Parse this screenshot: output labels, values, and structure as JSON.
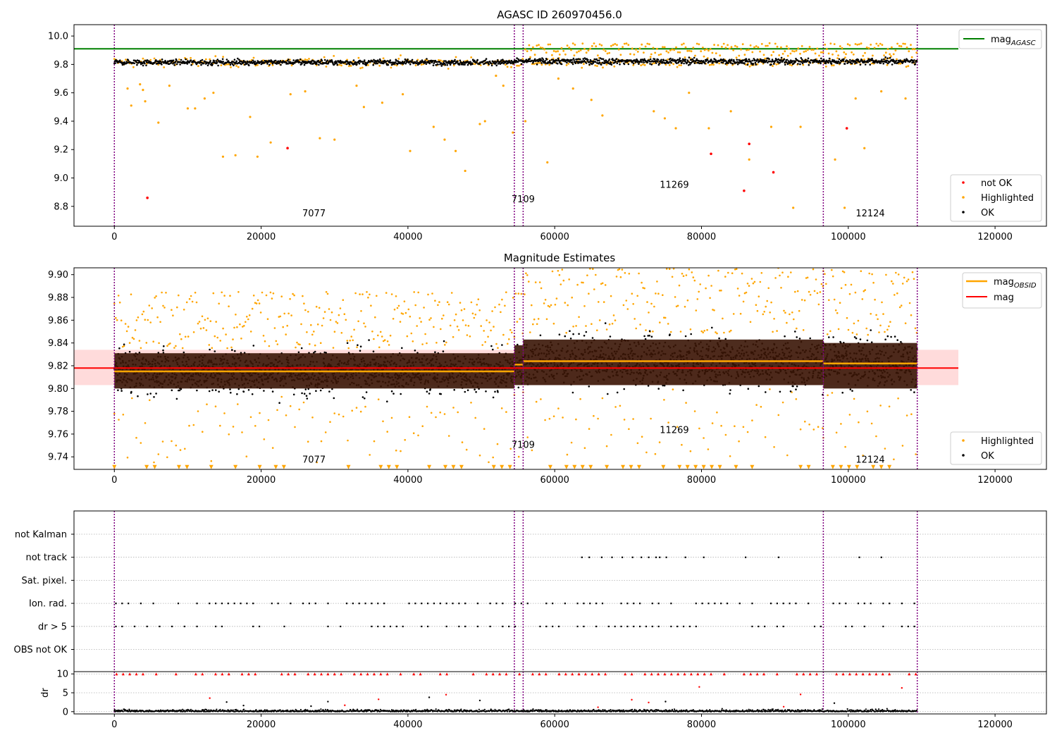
{
  "figure": {
    "background": "#ffffff",
    "colors": {
      "ok": "#000000",
      "highlighted": "#ffa500",
      "not_ok": "#ff0000",
      "mag_agasc_line": "#008000",
      "mag_line": "#ff0000",
      "mag_band": "#ffcccc",
      "obsid_band": "#3a1505",
      "obs_boundary": "#800080",
      "grid": "#b0b0b0"
    }
  },
  "chart_data": [
    {
      "id": "panel1",
      "type": "scatter",
      "title": "AGASC ID 260970456.0",
      "xlim": [
        -5500,
        127000
      ],
      "ylim": [
        8.66,
        10.08
      ],
      "x_ticks": [
        0,
        20000,
        40000,
        60000,
        80000,
        100000,
        120000
      ],
      "y_ticks": [
        8.8,
        9.0,
        9.2,
        9.4,
        9.6,
        9.8,
        10.0
      ],
      "y_tick_labels": [
        "8.8",
        "9.0",
        "9.2",
        "9.4",
        "9.6",
        "9.8",
        "10.0"
      ],
      "obs_boundaries": [
        0,
        54500,
        55700,
        96600,
        109400
      ],
      "obsid_labels": [
        {
          "text": "7077",
          "x": 27200,
          "y": 8.73
        },
        {
          "text": "7109",
          "x": 55700,
          "y": 8.83
        },
        {
          "text": "11269",
          "x": 76300,
          "y": 8.93
        },
        {
          "text": "12124",
          "x": 103000,
          "y": 8.73
        }
      ],
      "hlines": [
        {
          "name": "mag_AGASC",
          "y": 9.91,
          "x_range": [
            -5500,
            115000
          ]
        }
      ],
      "series": {
        "ok": {
          "segments": [
            {
              "x0": 0,
              "x1": 54500,
              "center": 9.815,
              "spread": 0.04
            },
            {
              "x0": 54500,
              "x1": 55700,
              "center": 9.82,
              "spread": 0.04
            },
            {
              "x0": 55700,
              "x1": 96600,
              "center": 9.822,
              "spread": 0.045
            },
            {
              "x0": 96600,
              "x1": 109400,
              "center": 9.822,
              "spread": 0.045
            }
          ]
        },
        "highlighted_outliers": [
          [
            1800,
            9.63
          ],
          [
            2300,
            9.51
          ],
          [
            3500,
            9.66
          ],
          [
            3900,
            9.62
          ],
          [
            4200,
            9.54
          ],
          [
            6000,
            9.39
          ],
          [
            7500,
            9.65
          ],
          [
            10000,
            9.49
          ],
          [
            11000,
            9.49
          ],
          [
            12300,
            9.56
          ],
          [
            13500,
            9.6
          ],
          [
            14800,
            9.15
          ],
          [
            16500,
            9.16
          ],
          [
            18500,
            9.43
          ],
          [
            19500,
            9.15
          ],
          [
            21300,
            9.25
          ],
          [
            24000,
            9.59
          ],
          [
            26000,
            9.61
          ],
          [
            28000,
            9.28
          ],
          [
            30000,
            9.27
          ],
          [
            33000,
            9.65
          ],
          [
            34000,
            9.5
          ],
          [
            36500,
            9.53
          ],
          [
            39300,
            9.59
          ],
          [
            40300,
            9.19
          ],
          [
            43500,
            9.36
          ],
          [
            45000,
            9.27
          ],
          [
            46500,
            9.19
          ],
          [
            47800,
            9.05
          ],
          [
            49800,
            9.38
          ],
          [
            50500,
            9.4
          ],
          [
            52000,
            9.72
          ],
          [
            53000,
            9.65
          ],
          [
            54300,
            9.32
          ],
          [
            56000,
            9.4
          ],
          [
            59000,
            9.11
          ],
          [
            60500,
            9.7
          ],
          [
            62500,
            9.63
          ],
          [
            65000,
            9.55
          ],
          [
            66500,
            9.44
          ],
          [
            73500,
            9.47
          ],
          [
            75000,
            9.42
          ],
          [
            76500,
            9.35
          ],
          [
            78300,
            9.6
          ],
          [
            81000,
            9.35
          ],
          [
            84000,
            9.47
          ],
          [
            86500,
            9.13
          ],
          [
            89500,
            9.36
          ],
          [
            93500,
            9.36
          ],
          [
            98200,
            9.13
          ],
          [
            99500,
            8.79
          ],
          [
            101000,
            9.56
          ],
          [
            102200,
            9.21
          ],
          [
            104500,
            9.61
          ],
          [
            107800,
            9.56
          ],
          [
            92500,
            8.79
          ]
        ],
        "highlighted_upper_band": {
          "x0": 56000,
          "x1": 109400,
          "y_min": 9.86,
          "y_max": 9.95
        },
        "not_ok": [
          [
            4500,
            8.86
          ],
          [
            23600,
            9.21
          ],
          [
            81300,
            9.17
          ],
          [
            85800,
            8.91
          ],
          [
            86500,
            9.24
          ],
          [
            89800,
            9.04
          ],
          [
            99800,
            9.35
          ]
        ]
      },
      "legend": {
        "position": "upper right",
        "entries": [
          {
            "label": "mag",
            "subscript": "AGASC"
          }
        ]
      },
      "legend2": {
        "position": "lower right",
        "entries": [
          "not OK",
          "Highlighted",
          "OK"
        ]
      }
    },
    {
      "id": "panel2",
      "type": "scatter",
      "title": "Magnitude Estimates",
      "xlim": [
        -5500,
        127000
      ],
      "ylim": [
        9.729,
        9.906
      ],
      "x_ticks": [
        0,
        20000,
        40000,
        60000,
        80000,
        100000,
        120000
      ],
      "y_ticks": [
        9.74,
        9.76,
        9.78,
        9.8,
        9.82,
        9.84,
        9.86,
        9.88,
        9.9
      ],
      "y_tick_labels": [
        "9.74",
        "9.76",
        "9.78",
        "9.80",
        "9.82",
        "9.84",
        "9.86",
        "9.88",
        "9.90"
      ],
      "obs_boundaries": [
        0,
        54500,
        55700,
        96600,
        109400
      ],
      "obsid_labels": [
        {
          "text": "7077",
          "x": 27200,
          "y": 9.735
        },
        {
          "text": "7109",
          "x": 55700,
          "y": 9.748
        },
        {
          "text": "11269",
          "x": 76300,
          "y": 9.761
        },
        {
          "text": "12124",
          "x": 103000,
          "y": 9.735
        }
      ],
      "mag": {
        "value": 9.818,
        "band": [
          9.803,
          9.834
        ],
        "x_range": [
          -5500,
          115000
        ]
      },
      "mag_obsid": [
        {
          "x0": 0,
          "x1": 54500,
          "value": 9.815,
          "band": [
            9.8,
            9.831
          ]
        },
        {
          "x0": 54500,
          "x1": 55700,
          "value": 9.821,
          "band": [
            9.803,
            9.838
          ]
        },
        {
          "x0": 55700,
          "x1": 96600,
          "value": 9.824,
          "band": [
            9.803,
            9.843
          ]
        },
        {
          "x0": 96600,
          "x1": 109400,
          "value": 9.822,
          "band": [
            9.8,
            9.84
          ]
        }
      ],
      "series": {
        "ok": {
          "segments": [
            {
              "x0": 0,
              "x1": 54500,
              "center": 9.815,
              "spread": 0.037
            },
            {
              "x0": 54500,
              "x1": 55700,
              "center": 9.821,
              "spread": 0.04
            },
            {
              "x0": 55700,
              "x1": 96600,
              "center": 9.824,
              "spread": 0.044
            },
            {
              "x0": 96600,
              "x1": 109400,
              "center": 9.822,
              "spread": 0.045
            }
          ]
        },
        "highlighted_clip_markers_y": 9.731
      },
      "legend": {
        "position": "upper right",
        "entries": [
          {
            "label": "mag",
            "subscript": "OBSID"
          },
          {
            "label": "mag",
            "subscript": ""
          }
        ]
      },
      "legend2": {
        "position": "lower right",
        "entries": [
          "Highlighted",
          "OK"
        ]
      }
    },
    {
      "id": "panel3",
      "type": "scatter",
      "xlim": [
        -5500,
        127000
      ],
      "categories": [
        "not Kalman",
        "not track",
        "Sat. pixel.",
        "Ion. rad.",
        "dr > 5",
        "OBS not OK"
      ],
      "obs_boundaries": [
        0,
        54500,
        55700,
        96600,
        109400
      ],
      "flag_samples": {
        "not track": [
          63700,
          64700,
          66400,
          67800,
          69200,
          70600,
          71800,
          72800,
          73800,
          74300,
          75200,
          77800,
          80300,
          86000,
          90500,
          101500,
          104500
        ],
        "ion_rad_step": 850,
        "dr_gt_5_step": 850
      }
    },
    {
      "id": "panel4",
      "type": "scatter",
      "xlim": [
        -5500,
        127000
      ],
      "ylim": [
        -0.6,
        10.6
      ],
      "y_ticks": [
        0,
        5,
        10
      ],
      "y_tick_labels": [
        "0",
        "5",
        "10"
      ],
      "x_ticks": [
        0,
        20000,
        40000,
        60000,
        80000,
        100000,
        120000
      ],
      "ylabel": "dr",
      "obs_boundaries": [
        0,
        54500,
        55700,
        96600,
        109400
      ],
      "clipped_at": 10
    }
  ],
  "x_tick_labels": [
    "0",
    "20000",
    "40000",
    "60000",
    "80000",
    "100000",
    "120000"
  ],
  "legend_labels": {
    "mag_agasc_base": "mag",
    "mag_agasc_sub": "AGASC",
    "mag_obsid_base": "mag",
    "mag_obsid_sub": "OBSID",
    "mag": "mag",
    "not_ok": "not OK",
    "highlighted": "Highlighted",
    "ok": "OK"
  }
}
